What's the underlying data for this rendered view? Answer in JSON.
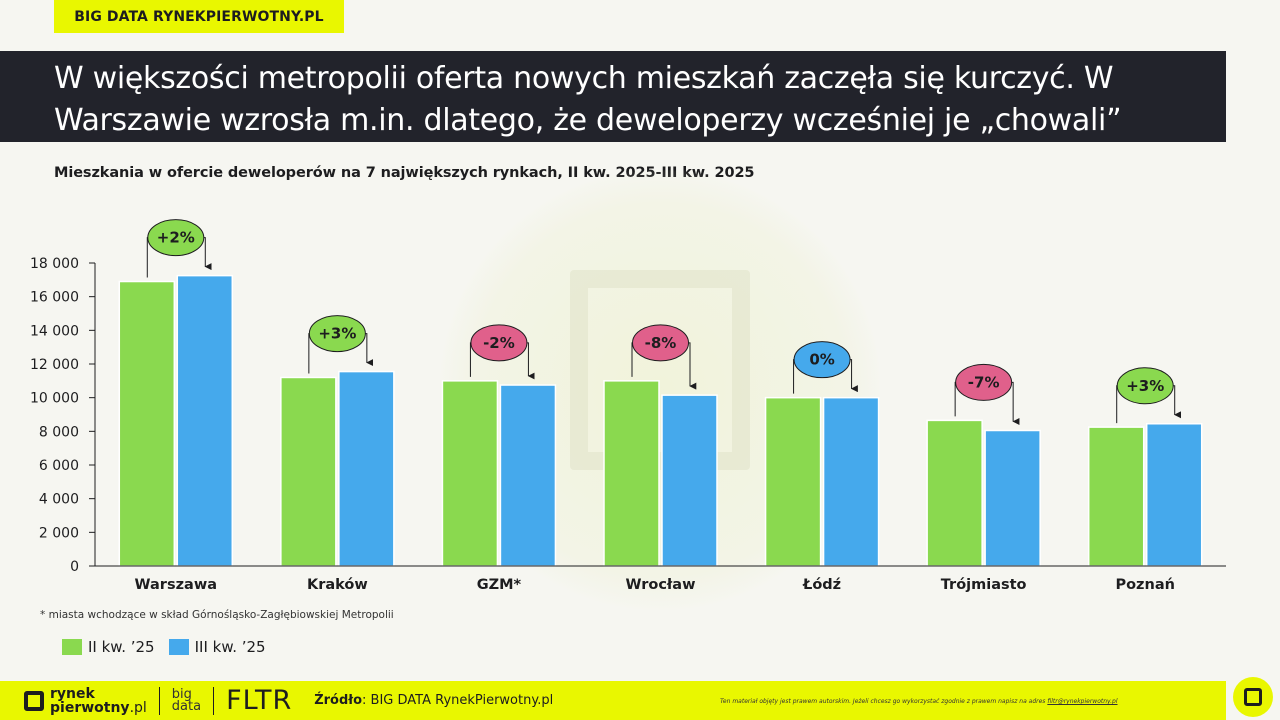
{
  "brand": {
    "tag": "BIG DATA RYNEKPIERWOTNY.PL"
  },
  "title": {
    "line1": "W większości metropolii oferta nowych mieszkań zaczęła się kurczyć. W",
    "line2": "Warszawie wzrosła m.in. dlatego, że deweloperzy wcześniej je „chowali”"
  },
  "colors": {
    "accent": "#e9f700",
    "dark": "#22232b",
    "series1": "#8ad94f",
    "series2": "#45a9ec",
    "positive": "#8ad94f",
    "negative": "#e0608b",
    "neutral": "#45a9ec"
  },
  "chart_data": {
    "type": "bar",
    "title": "Mieszkania w ofercie deweloperów na 7 największych rynkach, II kw. 2025-III kw. 2025",
    "categories": [
      "Warszawa",
      "Kraków",
      "GZM*",
      "Wrocław",
      "Łódź",
      "Trójmiasto",
      "Poznań"
    ],
    "series": [
      {
        "name": "II kw. ’25",
        "values": [
          16900,
          11200,
          11000,
          11000,
          10000,
          8650,
          8250
        ]
      },
      {
        "name": "III kw. ’25",
        "values": [
          17250,
          11550,
          10750,
          10150,
          10000,
          8050,
          8450
        ]
      }
    ],
    "changes": [
      "+2%",
      "+3%",
      "-2%",
      "-8%",
      "0%",
      "-7%",
      "+3%"
    ],
    "change_types": [
      "positive",
      "positive",
      "negative",
      "negative",
      "neutral",
      "negative",
      "positive"
    ],
    "ylim": [
      0,
      18000
    ],
    "yticks": [
      0,
      2000,
      4000,
      6000,
      8000,
      10000,
      12000,
      14000,
      16000,
      18000
    ],
    "ytick_labels": [
      "0",
      "2 000",
      "4 000",
      "6 000",
      "8 000",
      "10 000",
      "12 000",
      "14 000",
      "16 000",
      "18 000"
    ],
    "xlabel": "",
    "ylabel": "",
    "legend_position": "bottom-left"
  },
  "footnote": "* miasta wchodzące w skład Górnośląsko-Zagłębiowskiej Metropolii",
  "footer": {
    "logo_line1": "rynek",
    "logo_line2": "pierwotny",
    "logo_suffix": ".pl",
    "bigdata_line1": "big",
    "bigdata_line2": "data",
    "fltr": "FLTR",
    "source_label": "Źródło",
    "source_value": ": BIG DATA RynekPierwotny.pl",
    "legal_text": "Ten materiał objęty jest prawem autorskim. Jeżeli chcesz go wykorzystać zgodnie z prawem napisz na adres ",
    "legal_email": "filtr@rynekpierwotny.pl"
  }
}
